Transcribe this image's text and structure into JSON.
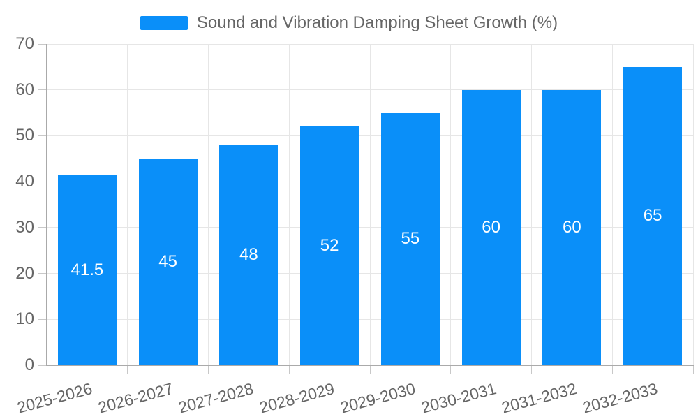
{
  "legend": {
    "position": "top-center",
    "items": [
      {
        "label": "Sound and Vibration Damping Sheet Growth (%)",
        "color": "#0a8ff9"
      }
    ]
  },
  "chart_data": {
    "type": "bar",
    "title": "Sound and Vibration Damping Sheet Growth (%)",
    "categories": [
      "2025-2026",
      "2026-2027",
      "2027-2028",
      "2028-2029",
      "2029-2030",
      "2030-2031",
      "2031-2032",
      "2032-2033"
    ],
    "series": [
      {
        "name": "Sound and Vibration Damping Sheet Growth (%)",
        "values": [
          41.5,
          45,
          48,
          52,
          55,
          60,
          60,
          65
        ]
      }
    ],
    "value_labels": [
      "41.5",
      "45",
      "48",
      "52",
      "55",
      "60",
      "60",
      "65"
    ],
    "xlabel": "",
    "ylabel": "",
    "ylim": [
      0,
      70
    ],
    "yticks": [
      0,
      10,
      20,
      30,
      40,
      50,
      60,
      70
    ],
    "grid": true,
    "x_label_rotation_deg": -15,
    "legend_position": "top-center",
    "colors": {
      "bar": "#0a8ff9",
      "grid_line": "#e6e6e6",
      "axis_line": "#aaaaaa",
      "tick_mark": "#c8c8c8",
      "tick_label": "#666666",
      "value_label": "#ffffff",
      "background": "#ffffff"
    }
  }
}
